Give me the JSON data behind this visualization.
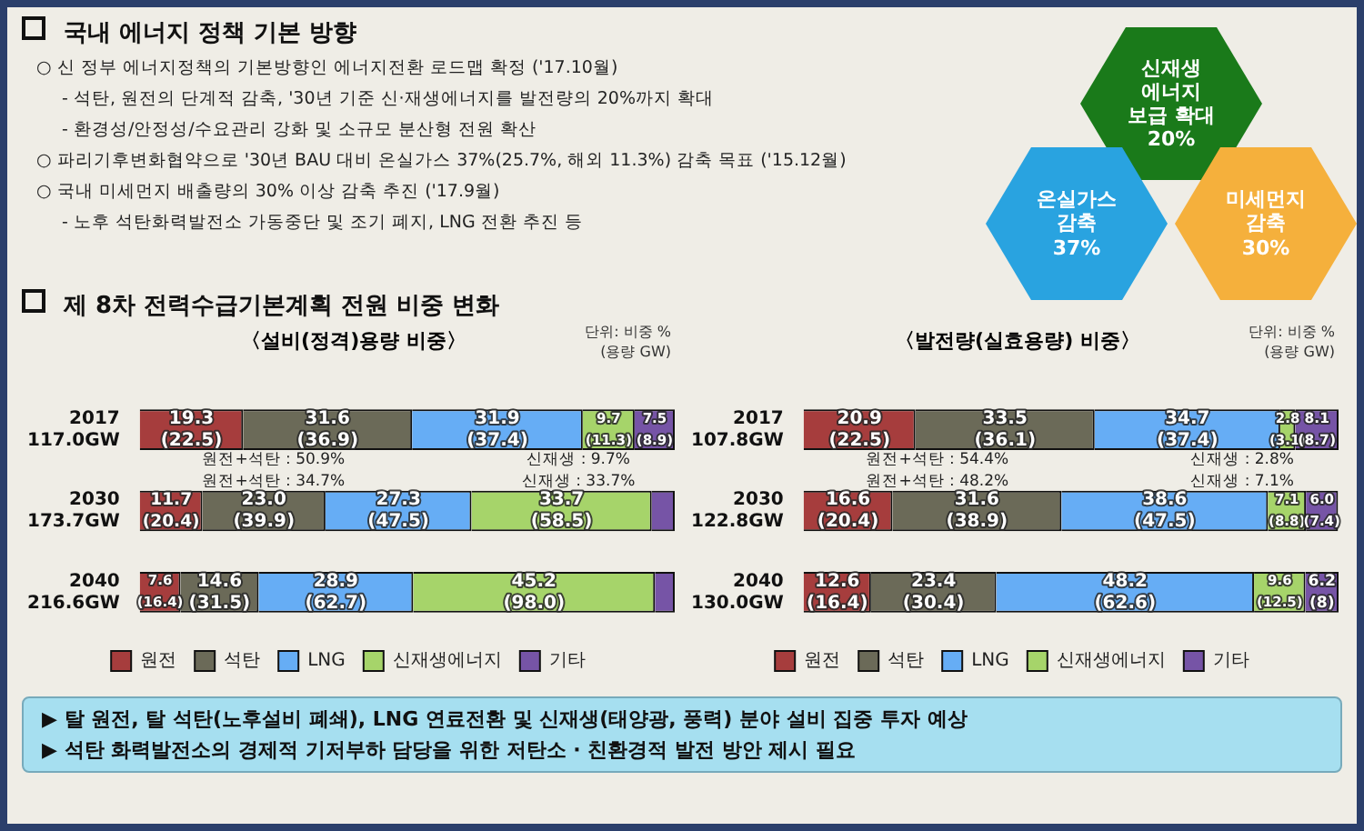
{
  "chart_data": [
    {
      "type": "other",
      "title": "국내 에너지 정책 기본 방향",
      "annotations": [
        "○ 신 정부 에너지정책의 기본방향인 에너지전환 로드맵 확정 ('17.10월)",
        "- 석탄, 원전의 단계적 감축, '30년 기준 신·재생에너지를 발전량의 20%까지 확대",
        "- 환경성/안정성/수요관리 강화 및 소규모 분산형 전원 확산",
        "○ 파리기후변화협약으로 '30년 BAU 대비 온실가스 37%(25.7%, 해외 11.3%) 감축 목표 ('15.12월)",
        "○ 국내 미세먼지 배출량의 30% 이상 감축 추진 ('17.9월)",
        "- 노후 석탄화력발전소 가동중단 및 조기 폐지, LNG 전환 추진 등"
      ],
      "categories": [
        "신재생\n에너지\n보급 확대\n20%",
        "온실가스\n감축\n37%",
        "미세먼지\n감축\n30%"
      ],
      "colors": [
        "#1a7a1a",
        "#29a3e0",
        "#f5b03c"
      ]
    },
    {
      "type": "bar",
      "orientation": "horizontal",
      "stacked": true,
      "title": "제 8차 전력수급기본계획 전원 비중 변화",
      "subtitle": "〈설비(정격)용량 비중〉",
      "categories": [
        "2017\n117.0GW",
        "2030\n173.7GW",
        "2040\n216.6GW"
      ],
      "xlim": [
        0,
        100
      ],
      "tick_labels": "y",
      "legend": "bottom",
      "annotations": [
        "단위: 비중 %\n(용량 GW)",
        "원전+석탄 : 50.9%",
        "신재생 : 9.7%",
        "원전+석탄 : 34.7%",
        "신재생 : 33.7%"
      ],
      "series": [
        {
          "name": "원전",
          "color": "#a63d3d",
          "values": [
            19.3,
            11.7,
            7.6
          ],
          "value_labels": [
            "19.3\n(22.5)",
            "11.7\n(20.4)",
            "7.6\n(16.4)"
          ]
        },
        {
          "name": "석탄",
          "color": "#6b6a58",
          "values": [
            31.6,
            23.0,
            14.6
          ],
          "value_labels": [
            "31.6\n(36.9)",
            "23.0\n(39.9)",
            "14.6\n(31.5)"
          ]
        },
        {
          "name": "LNG",
          "color": "#66adf5",
          "values": [
            31.9,
            27.3,
            28.9
          ],
          "value_labels": [
            "31.9\n(37.4)",
            "27.3\n(47.5)",
            "28.9\n(62.7)"
          ]
        },
        {
          "name": "신재생에너지",
          "color": "#a6d46a",
          "values": [
            9.7,
            33.7,
            45.2
          ],
          "value_labels": [
            "9.7\n(11.3)",
            "33.7\n(58.5)",
            "45.2\n(98.0)"
          ]
        },
        {
          "name": "기타",
          "color": "#7654a6",
          "values": [
            7.5,
            4.3,
            3.7
          ],
          "value_labels": [
            "7.5\n(8.9)",
            null,
            null
          ]
        }
      ]
    },
    {
      "type": "bar",
      "orientation": "horizontal",
      "stacked": true,
      "title": "〈발전량(실효용량) 비중〉",
      "categories": [
        "2017\n107.8GW",
        "2030\n122.8GW",
        "2040\n130.0GW"
      ],
      "xlim": [
        0,
        100
      ],
      "tick_labels": "y",
      "legend": "bottom",
      "annotations": [
        "단위: 비중 %\n(용량 GW)",
        "원전+석탄 : 54.4%",
        "신재생 : 2.8%",
        "원전+석탄 : 48.2%",
        "신재생 : 7.1%"
      ],
      "series": [
        {
          "name": "원전",
          "color": "#a63d3d",
          "values": [
            20.9,
            16.6,
            12.6
          ],
          "value_labels": [
            "20.9\n(22.5)",
            "16.6\n(20.4)",
            "12.6\n(16.4)"
          ]
        },
        {
          "name": "석탄",
          "color": "#6b6a58",
          "values": [
            33.5,
            31.6,
            23.4
          ],
          "value_labels": [
            "33.5\n(36.1)",
            "31.6\n(38.9)",
            "23.4\n(30.4)"
          ]
        },
        {
          "name": "LNG",
          "color": "#66adf5",
          "values": [
            34.7,
            38.6,
            48.2
          ],
          "value_labels": [
            "34.7\n(37.4)",
            "38.6\n(47.5)",
            "48.2\n(62.6)"
          ]
        },
        {
          "name": "신재생에너지",
          "color": "#a6d46a",
          "values": [
            2.8,
            7.1,
            9.6
          ],
          "value_labels": [
            "2.8\n(3.1)",
            "7.1\n(8.8)",
            "9.6\n(12.5)"
          ]
        },
        {
          "name": "기타",
          "color": "#7654a6",
          "values": [
            8.1,
            6.0,
            6.2
          ],
          "value_labels": [
            "8.1\n(8.7)",
            "6.0\n(7.4)",
            "6.2\n(8)"
          ]
        }
      ]
    },
    {
      "type": "other",
      "annotations": [
        "▶ 탈 원전, 탈 석탄(노후설비 폐쇄), LNG 연료전환 및 신재생(태양광, 풍력) 분야 설비 집중 투자 예상",
        "▶ 석탄 화력발전소의 경제적 기저부하 담당을 위한 저탄소 · 친환경적 발전 방안 제시 필요"
      ]
    }
  ]
}
